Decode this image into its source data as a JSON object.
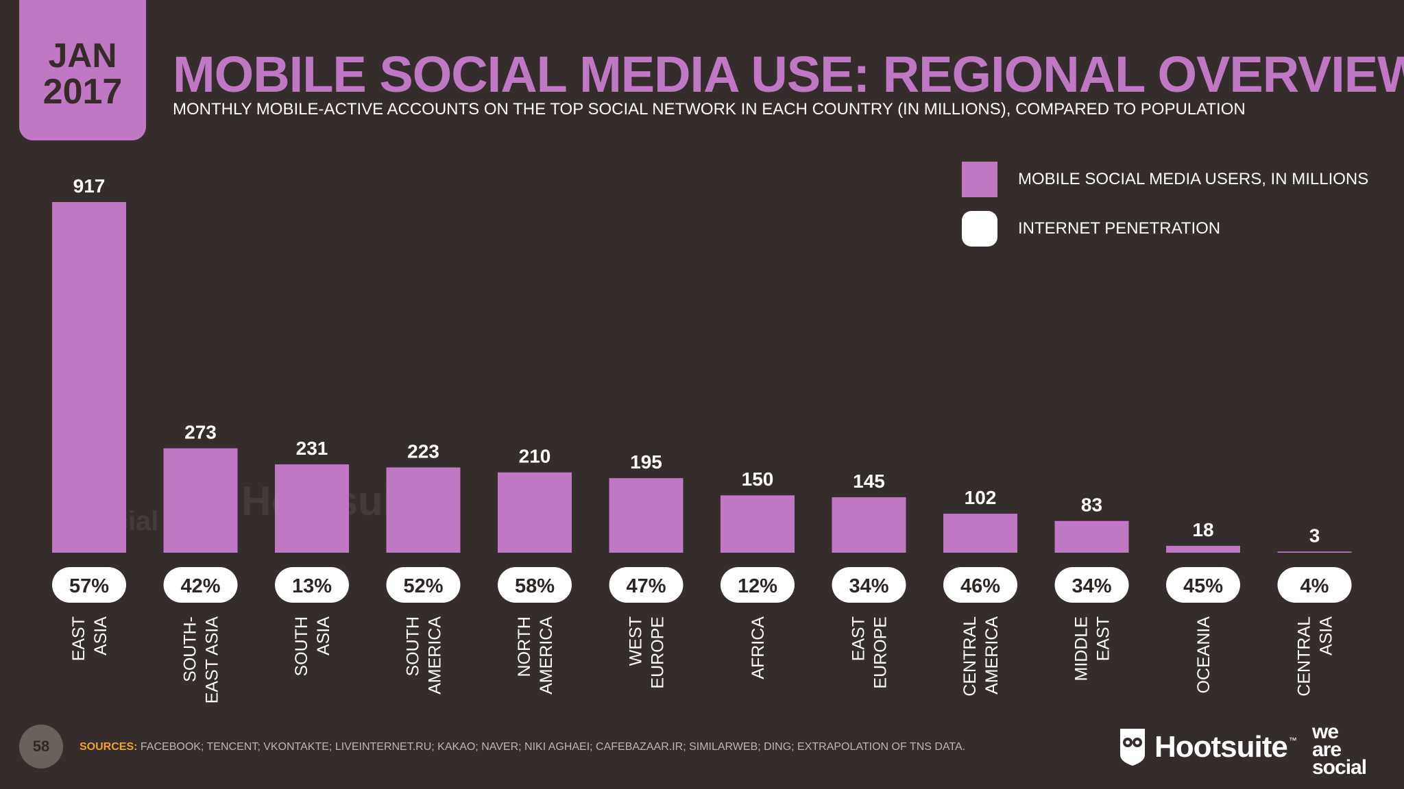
{
  "date_tab": {
    "month": "JAN",
    "year": "2017"
  },
  "header": {
    "title": "MOBILE SOCIAL MEDIA USE: REGIONAL OVERVIEW",
    "subtitle": "MONTHLY MOBILE-ACTIVE ACCOUNTS ON THE TOP SOCIAL NETWORK IN EACH COUNTRY (IN MILLIONS), COMPARED TO POPULATION"
  },
  "legend": {
    "bar_label": "MOBILE SOCIAL MEDIA USERS, IN MILLIONS",
    "pill_label": "INTERNET PENETRATION"
  },
  "chart_data": {
    "type": "bar",
    "categories": [
      [
        "EAST",
        "ASIA"
      ],
      [
        "SOUTH-",
        "EAST ASIA"
      ],
      [
        "SOUTH",
        "ASIA"
      ],
      [
        "SOUTH",
        "AMERICA"
      ],
      [
        "NORTH",
        "AMERICA"
      ],
      [
        "WEST",
        "EUROPE"
      ],
      [
        "AFRICA"
      ],
      [
        "EAST",
        "EUROPE"
      ],
      [
        "CENTRAL",
        "AMERICA"
      ],
      [
        "MIDDLE",
        "EAST"
      ],
      [
        "OCEANIA"
      ],
      [
        "CENTRAL",
        "ASIA"
      ]
    ],
    "series": [
      {
        "name": "MOBILE SOCIAL MEDIA USERS, IN MILLIONS",
        "values": [
          917,
          273,
          231,
          223,
          210,
          195,
          150,
          145,
          102,
          83,
          18,
          3
        ]
      },
      {
        "name": "INTERNET PENETRATION",
        "values": [
          "57%",
          "42%",
          "13%",
          "52%",
          "58%",
          "47%",
          "12%",
          "34%",
          "46%",
          "34%",
          "45%",
          "4%"
        ]
      }
    ],
    "ylim": [
      0,
      917
    ],
    "grid": false,
    "legend_position": "top-right",
    "colors": {
      "bar": "#c077c4",
      "pill": "#ffffff",
      "background": "#342d2b"
    }
  },
  "watermark": {
    "we": "we",
    "are": "are",
    "social": "social",
    "brand": "Hootsuite"
  },
  "footer": {
    "page_number": "58",
    "sources_label": "SOURCES:",
    "sources_text": "FACEBOOK; TENCENT; VKONTAKTE; LIVEINTERNET.RU; KAKAO; NAVER; NIKI AGHAEI; CAFEBAZAAR.IR; SIMILARWEB; DING; EXTRAPOLATION OF TNS DATA.",
    "brand_hootsuite": "Hootsuite",
    "brand_tm": "™",
    "brand_was": [
      "we",
      "are",
      "social"
    ]
  },
  "icons": {
    "owl": "owl-logo-icon"
  }
}
